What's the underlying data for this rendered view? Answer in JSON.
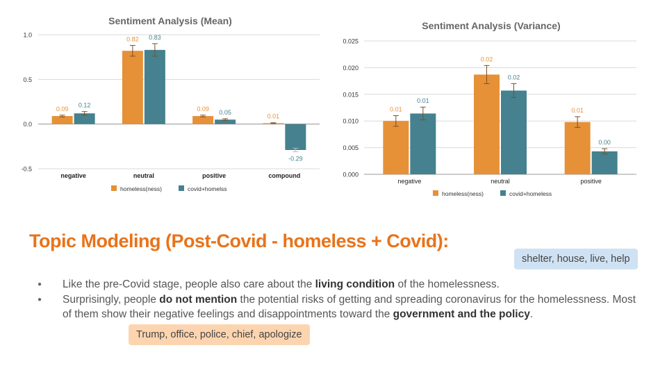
{
  "chart_data": [
    {
      "type": "bar",
      "title": "Sentiment Analysis (Mean)",
      "categories": [
        "negative",
        "neutral",
        "positive",
        "compound"
      ],
      "series": [
        {
          "name": "homeless(ness)",
          "values": [
            0.09,
            0.82,
            0.09,
            0.01
          ],
          "error": [
            0.01,
            0.06,
            0.01,
            0.005
          ],
          "labels": [
            "0.09",
            "0.82",
            "0.09",
            "0.01"
          ],
          "color": "#e69138"
        },
        {
          "name": "covid+homelss",
          "values": [
            0.12,
            0.83,
            0.05,
            -0.29
          ],
          "error": [
            0.02,
            0.07,
            0.01,
            0.02
          ],
          "labels": [
            "0.12",
            "0.83",
            "0.05",
            "-0.29"
          ],
          "color": "#45818e"
        }
      ],
      "ylim": [
        -0.5,
        1.0
      ],
      "yticks": [
        1.0,
        0.5,
        0.0,
        -0.5
      ],
      "ytick_labels": [
        "1.0",
        "0.5",
        "0.0",
        "-0.5"
      ],
      "grid": true,
      "legend": "bottom"
    },
    {
      "type": "bar",
      "title": "Sentiment Analysis (Variance)",
      "categories": [
        "negative",
        "neutral",
        "positive"
      ],
      "series": [
        {
          "name": "homeless(ness)",
          "values": [
            0.01,
            0.0187,
            0.0098
          ],
          "error": [
            0.001,
            0.0017,
            0.001
          ],
          "labels": [
            "0.01",
            "0.02",
            "0.01"
          ],
          "color": "#e69138"
        },
        {
          "name": "covid+homeless",
          "values": [
            0.0114,
            0.0157,
            0.0043
          ],
          "error": [
            0.0012,
            0.0013,
            0.0005
          ],
          "labels": [
            "0.01",
            "0.02",
            "0.00"
          ],
          "color": "#45818e"
        }
      ],
      "ylim": [
        0,
        0.025
      ],
      "yticks": [
        0.025,
        0.02,
        0.015,
        0.01,
        0.005,
        0
      ],
      "ytick_labels": [
        "0.025",
        "0.020",
        "0.015",
        "0.010",
        "0.005",
        "0.000"
      ],
      "grid": true,
      "legend": "bottom"
    }
  ],
  "topic": {
    "title": "Topic Modeling (Post-Covid - homeless + Covid):",
    "tag_blue": "shelter, house, live, help",
    "tag_orange": "Trump, office, police, chief, apologize"
  },
  "bullets": [
    {
      "t1": "Like the pre-Covid stage, people also care about the ",
      "b1": "living condition",
      "t2": " of the homelessness."
    },
    {
      "t1": "Surprisingly, people ",
      "b1": "do not mention",
      "t2": " the potential risks of getting and spreading coronavirus for the homelessness. Most of them show their negative feelings and disappointments toward the ",
      "b2": "government and the policy",
      "t3": "."
    }
  ],
  "colors": {
    "homeless": "#e69138",
    "covid": "#45818e",
    "title": "#e8731a"
  }
}
